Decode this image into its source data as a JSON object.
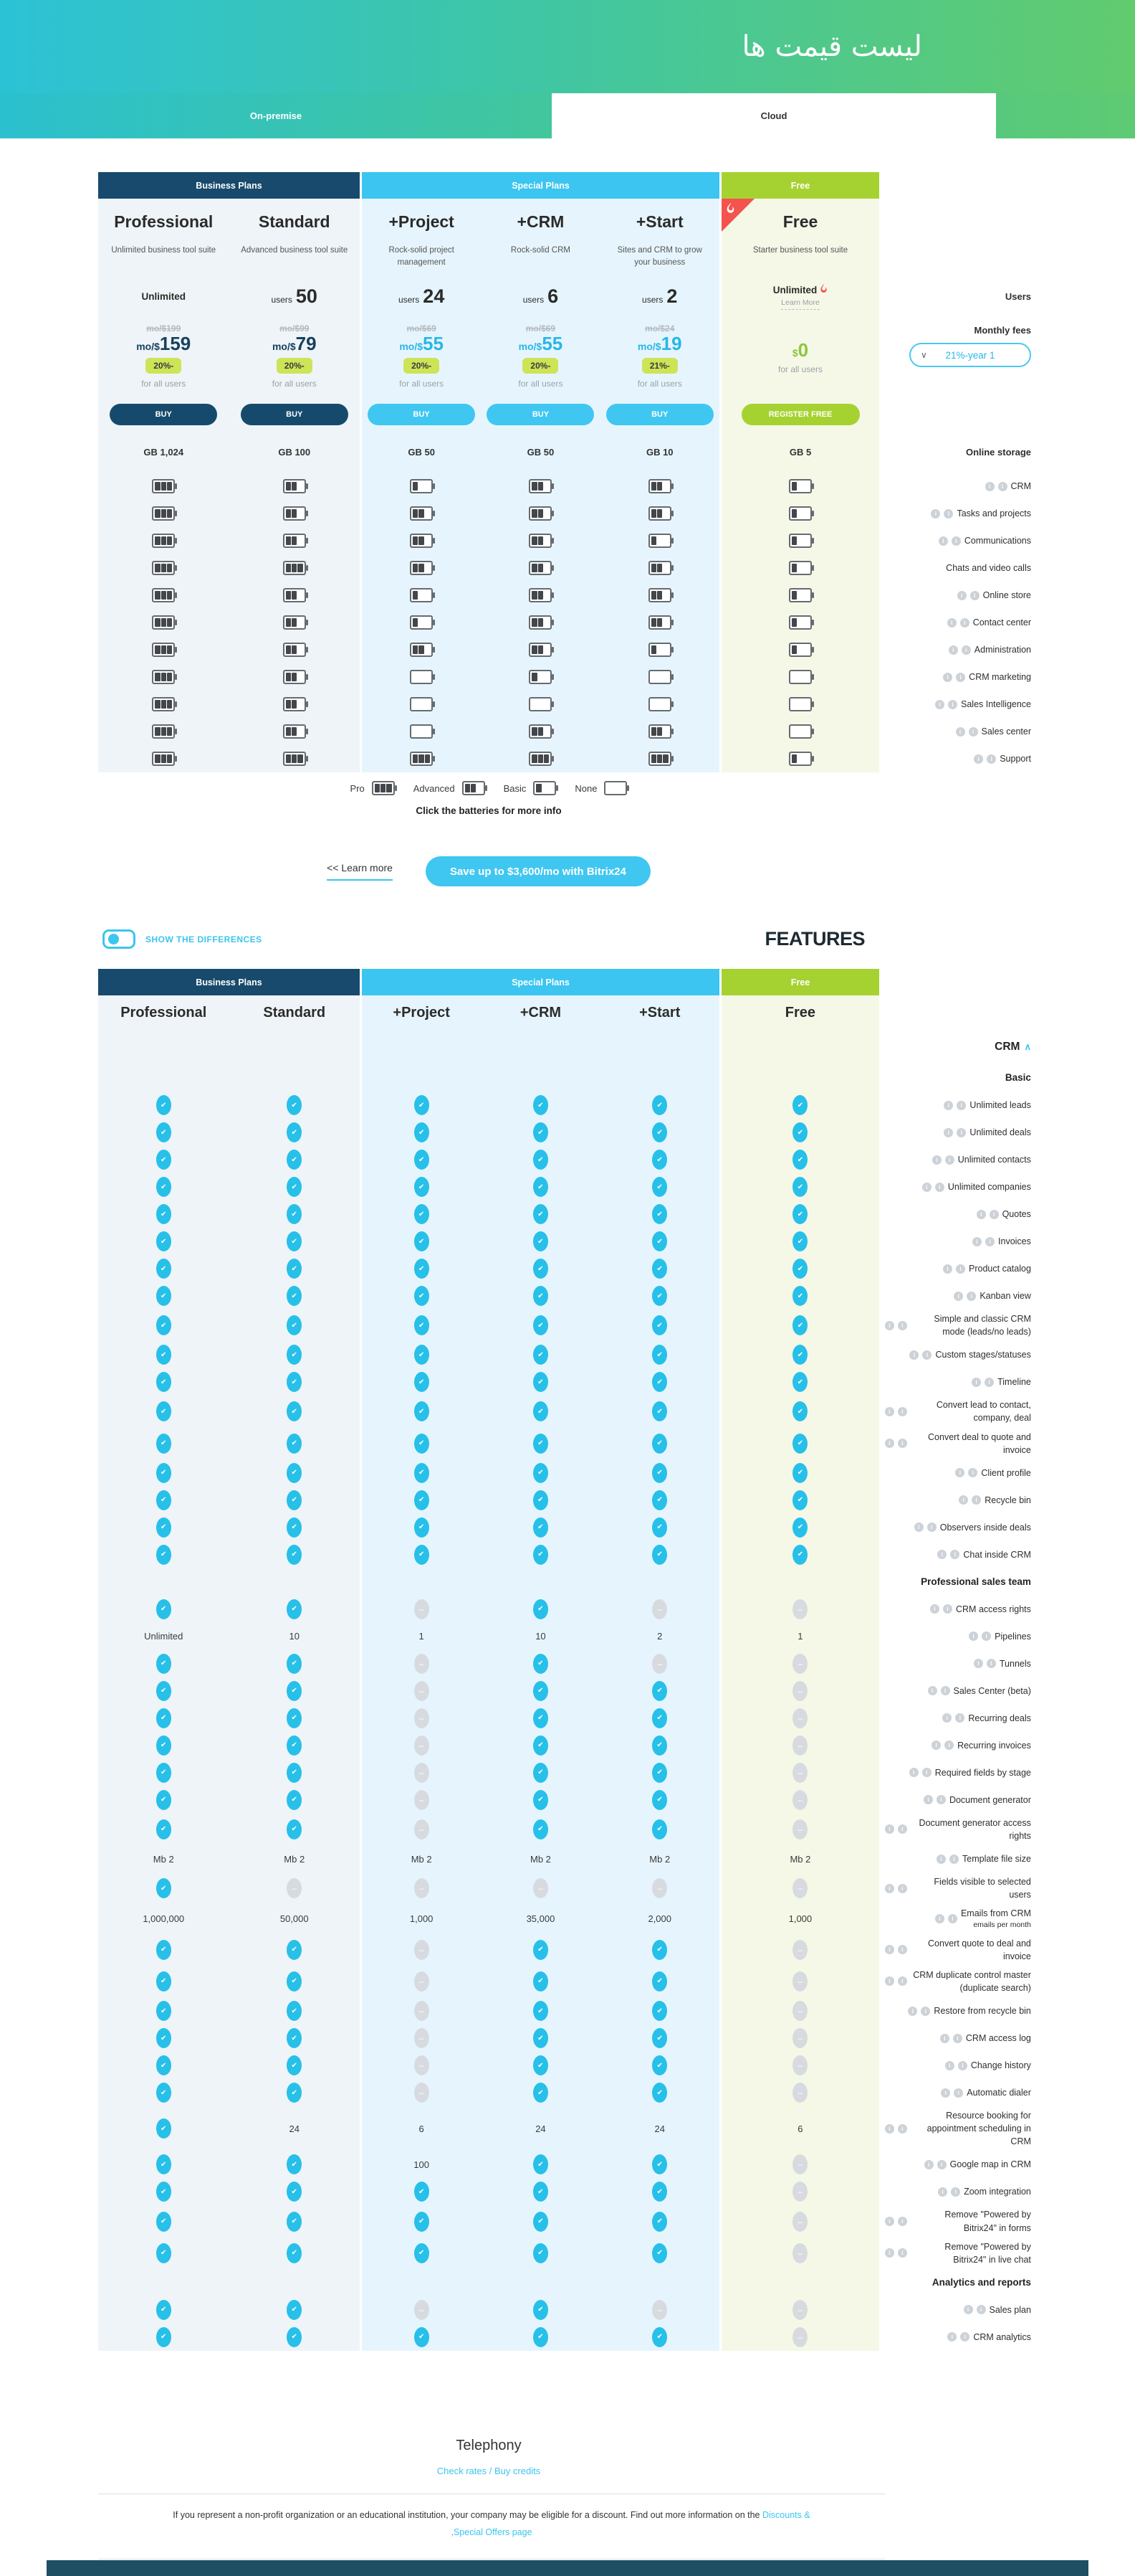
{
  "page": {
    "title": "لیست قیمت ها"
  },
  "tabs": {
    "on_premise": "On-premise",
    "cloud": "Cloud"
  },
  "groups": {
    "business": "Business Plans",
    "special": "Special Plans",
    "free": "Free"
  },
  "colors": {
    "accent_cyan": "#3fc7f1",
    "navy": "#174a6c",
    "green": "#a6d231",
    "badge": "#cde457",
    "check": "#27c0e9"
  },
  "plans": [
    {
      "name": "Professional",
      "desc": "Unlimited business tool suite",
      "users": "Unlimited",
      "old_price": "mo/$199",
      "price_unit": "mo/$",
      "price_num": "159",
      "discount": "20%-",
      "per": "for all users",
      "cta": "BUY",
      "storage": "GB 1,024"
    },
    {
      "name": "Standard",
      "desc": "Advanced business tool suite",
      "users_word": "users",
      "users_num": "50",
      "old_price": "mo/$99",
      "price_unit": "mo/$",
      "price_num": "79",
      "discount": "20%-",
      "per": "for all users",
      "cta": "BUY",
      "storage": "GB 100"
    },
    {
      "name": "+Project",
      "desc": "Rock-solid project management",
      "users_word": "users",
      "users_num": "24",
      "old_price": "mo/$69",
      "price_unit": "mo/$",
      "price_num": "55",
      "discount": "20%-",
      "per": "for all users",
      "cta": "BUY",
      "storage": "GB 50"
    },
    {
      "name": "+CRM",
      "desc": "Rock-solid CRM",
      "users_word": "users",
      "users_num": "6",
      "old_price": "mo/$69",
      "price_unit": "mo/$",
      "price_num": "55",
      "discount": "20%-",
      "per": "for all users",
      "cta": "BUY",
      "storage": "GB 50"
    },
    {
      "name": "+Start",
      "desc": "Sites and CRM to grow your business",
      "users_word": "users",
      "users_num": "2",
      "old_price": "mo/$24",
      "price_unit": "mo/$",
      "price_num": "19",
      "discount": "21%-",
      "per": "for all users",
      "cta": "BUY",
      "storage": "GB 10"
    },
    {
      "name": "Free",
      "desc": "Starter business tool suite",
      "users": "Unlimited",
      "learn_more": "Learn More",
      "price_unit": "$",
      "price_num": "0",
      "per": "for all users",
      "cta": "REGISTER FREE",
      "storage": "GB 5"
    }
  ],
  "side": {
    "users": "Users",
    "monthly_fees": "Monthly fees",
    "dropdown": "21%-year 1",
    "online_storage": "Online storage"
  },
  "battery_rows": [
    {
      "label": "CRM",
      "info": 2,
      "levels": [
        3,
        2,
        1,
        2,
        2,
        1
      ]
    },
    {
      "label": "Tasks and projects",
      "info": 2,
      "levels": [
        3,
        2,
        2,
        2,
        2,
        1
      ]
    },
    {
      "label": "Communications",
      "info": 2,
      "levels": [
        3,
        2,
        2,
        2,
        1,
        1
      ]
    },
    {
      "label": "Chats and video calls",
      "info": 0,
      "levels": [
        3,
        3,
        2,
        2,
        2,
        1
      ]
    },
    {
      "label": "Online store",
      "info": 2,
      "levels": [
        3,
        2,
        1,
        2,
        2,
        1
      ]
    },
    {
      "label": "Contact center",
      "info": 2,
      "levels": [
        3,
        2,
        1,
        2,
        2,
        1
      ]
    },
    {
      "label": "Administration",
      "info": 2,
      "levels": [
        3,
        2,
        2,
        2,
        1,
        1
      ]
    },
    {
      "label": "CRM marketing",
      "info": 2,
      "levels": [
        3,
        2,
        0,
        1,
        0,
        0
      ]
    },
    {
      "label": "Sales Intelligence",
      "info": 2,
      "levels": [
        3,
        2,
        0,
        0,
        0,
        0
      ]
    },
    {
      "label": "Sales center",
      "info": 2,
      "levels": [
        3,
        2,
        0,
        2,
        2,
        0
      ]
    },
    {
      "label": "Support",
      "info": 2,
      "levels": [
        3,
        3,
        3,
        3,
        3,
        1
      ]
    }
  ],
  "legend": {
    "items": [
      {
        "label": "Pro",
        "level": 3
      },
      {
        "label": "Advanced",
        "level": 2
      },
      {
        "label": "Basic",
        "level": 1
      },
      {
        "label": "None",
        "level": 0
      }
    ],
    "note": "Click the batteries for more info"
  },
  "banner": {
    "learn_more": "<< Learn more",
    "save": "Save up to $3,600/mo with Bitrix24"
  },
  "features_bar": {
    "toggle": "SHOW THE DIFFERENCES",
    "title": "FEATURES"
  },
  "features": {
    "section": "CRM",
    "rows": [
      {
        "h": "Basic"
      },
      {
        "label": "Unlimited leads",
        "cells": [
          "c",
          "c",
          "c",
          "c",
          "c",
          "c"
        ]
      },
      {
        "label": "Unlimited deals",
        "cells": [
          "c",
          "c",
          "c",
          "c",
          "c",
          "c"
        ]
      },
      {
        "label": "Unlimited contacts",
        "cells": [
          "c",
          "c",
          "c",
          "c",
          "c",
          "c"
        ]
      },
      {
        "label": "Unlimited companies",
        "cells": [
          "c",
          "c",
          "c",
          "c",
          "c",
          "c"
        ]
      },
      {
        "label": "Quotes",
        "cells": [
          "c",
          "c",
          "c",
          "c",
          "c",
          "c"
        ]
      },
      {
        "label": "Invoices",
        "cells": [
          "c",
          "c",
          "c",
          "c",
          "c",
          "c"
        ]
      },
      {
        "label": "Product catalog",
        "cells": [
          "c",
          "c",
          "c",
          "c",
          "c",
          "c"
        ]
      },
      {
        "label": "Kanban view",
        "cells": [
          "c",
          "c",
          "c",
          "c",
          "c",
          "c"
        ]
      },
      {
        "label": "Simple and classic CRM mode (leads/no leads)",
        "cells": [
          "c",
          "c",
          "c",
          "c",
          "c",
          "c"
        ]
      },
      {
        "label": "Custom stages/statuses",
        "cells": [
          "c",
          "c",
          "c",
          "c",
          "c",
          "c"
        ]
      },
      {
        "label": "Timeline",
        "cells": [
          "c",
          "c",
          "c",
          "c",
          "c",
          "c"
        ]
      },
      {
        "label": "Convert lead to contact, company, deal",
        "cells": [
          "c",
          "c",
          "c",
          "c",
          "c",
          "c"
        ]
      },
      {
        "label": "Convert deal to quote and invoice",
        "cells": [
          "c",
          "c",
          "c",
          "c",
          "c",
          "c"
        ]
      },
      {
        "label": "Client profile",
        "cells": [
          "c",
          "c",
          "c",
          "c",
          "c",
          "c"
        ]
      },
      {
        "label": "Recycle bin",
        "cells": [
          "c",
          "c",
          "c",
          "c",
          "c",
          "c"
        ]
      },
      {
        "label": "Observers inside deals",
        "cells": [
          "c",
          "c",
          "c",
          "c",
          "c",
          "c"
        ]
      },
      {
        "label": "Chat inside CRM",
        "cells": [
          "c",
          "c",
          "c",
          "c",
          "c",
          "c"
        ]
      },
      {
        "h": "Professional sales team"
      },
      {
        "label": "CRM access rights",
        "cells": [
          "c",
          "c",
          "d",
          "c",
          "d",
          "d"
        ]
      },
      {
        "label": "Pipelines",
        "cells": [
          "Unlimited",
          "10",
          "1",
          "10",
          "2",
          "1"
        ]
      },
      {
        "label": "Tunnels",
        "cells": [
          "c",
          "c",
          "d",
          "c",
          "d",
          "d"
        ]
      },
      {
        "label": "Sales Center (beta)",
        "cells": [
          "c",
          "c",
          "d",
          "c",
          "c",
          "d"
        ]
      },
      {
        "label": "Recurring deals",
        "cells": [
          "c",
          "c",
          "d",
          "c",
          "c",
          "d"
        ]
      },
      {
        "label": "Recurring invoices",
        "cells": [
          "c",
          "c",
          "d",
          "c",
          "c",
          "d"
        ]
      },
      {
        "label": "Required fields by stage",
        "cells": [
          "c",
          "c",
          "d",
          "c",
          "c",
          "d"
        ]
      },
      {
        "label": "Document generator",
        "cells": [
          "c",
          "c",
          "d",
          "c",
          "c",
          "d"
        ]
      },
      {
        "label": "Document generator access rights",
        "cells": [
          "c",
          "c",
          "d",
          "c",
          "c",
          "d"
        ]
      },
      {
        "label": "Template file size",
        "cells": [
          "Mb 2",
          "Mb 2",
          "Mb 2",
          "Mb 2",
          "Mb 2",
          "Mb 2"
        ]
      },
      {
        "label": "Fields visible to selected users",
        "cells": [
          "c",
          "d",
          "d",
          "d",
          "d",
          "d"
        ]
      },
      {
        "label": "Emails from CRM",
        "label2": "emails per month",
        "cells": [
          "1,000,000",
          "50,000",
          "1,000",
          "35,000",
          "2,000",
          "1,000"
        ]
      },
      {
        "label": "Convert quote to deal and invoice",
        "cells": [
          "c",
          "c",
          "d",
          "c",
          "c",
          "d"
        ]
      },
      {
        "label": "CRM duplicate control master (duplicate search)",
        "cells": [
          "c",
          "c",
          "d",
          "c",
          "c",
          "d"
        ]
      },
      {
        "label": "Restore from recycle bin",
        "cells": [
          "c",
          "c",
          "d",
          "c",
          "c",
          "d"
        ]
      },
      {
        "label": "CRM access log",
        "cells": [
          "c",
          "c",
          "d",
          "c",
          "c",
          "d"
        ]
      },
      {
        "label": "Change history",
        "cells": [
          "c",
          "c",
          "d",
          "c",
          "c",
          "d"
        ]
      },
      {
        "label": "Automatic dialer",
        "cells": [
          "c",
          "c",
          "d",
          "c",
          "c",
          "d"
        ]
      },
      {
        "label": "Resource booking for appointment scheduling in CRM",
        "cells": [
          "c",
          "24",
          "6",
          "24",
          "24",
          "6"
        ]
      },
      {
        "label": "Google map in CRM",
        "cells": [
          "c",
          "c",
          "100",
          "c",
          "c",
          "d"
        ]
      },
      {
        "label": "Zoom integration",
        "cells": [
          "c",
          "c",
          "c",
          "c",
          "c",
          "d"
        ]
      },
      {
        "label": "Remove \"Powered by Bitrix24\" in forms",
        "cells": [
          "c",
          "c",
          "c",
          "c",
          "c",
          "d"
        ]
      },
      {
        "label": "Remove \"Powered by Bitrix24\" in live chat",
        "cells": [
          "c",
          "c",
          "c",
          "c",
          "c",
          "d"
        ]
      },
      {
        "h": "Analytics and reports"
      },
      {
        "label": "Sales plan",
        "cells": [
          "c",
          "c",
          "d",
          "c",
          "d",
          "d"
        ]
      },
      {
        "label": "CRM analytics",
        "cells": [
          "c",
          "c",
          "c",
          "c",
          "c",
          "d"
        ]
      }
    ]
  },
  "bottom": {
    "telephony": "Telephony",
    "link": "Check rates / Buy credits",
    "footer_text": "If you represent a non-profit organization or an educational institution, your company may be eligible for a discount. Find out more information on the",
    "footer_link1": "Discounts &",
    "footer_link2": ",Special Offers page"
  }
}
